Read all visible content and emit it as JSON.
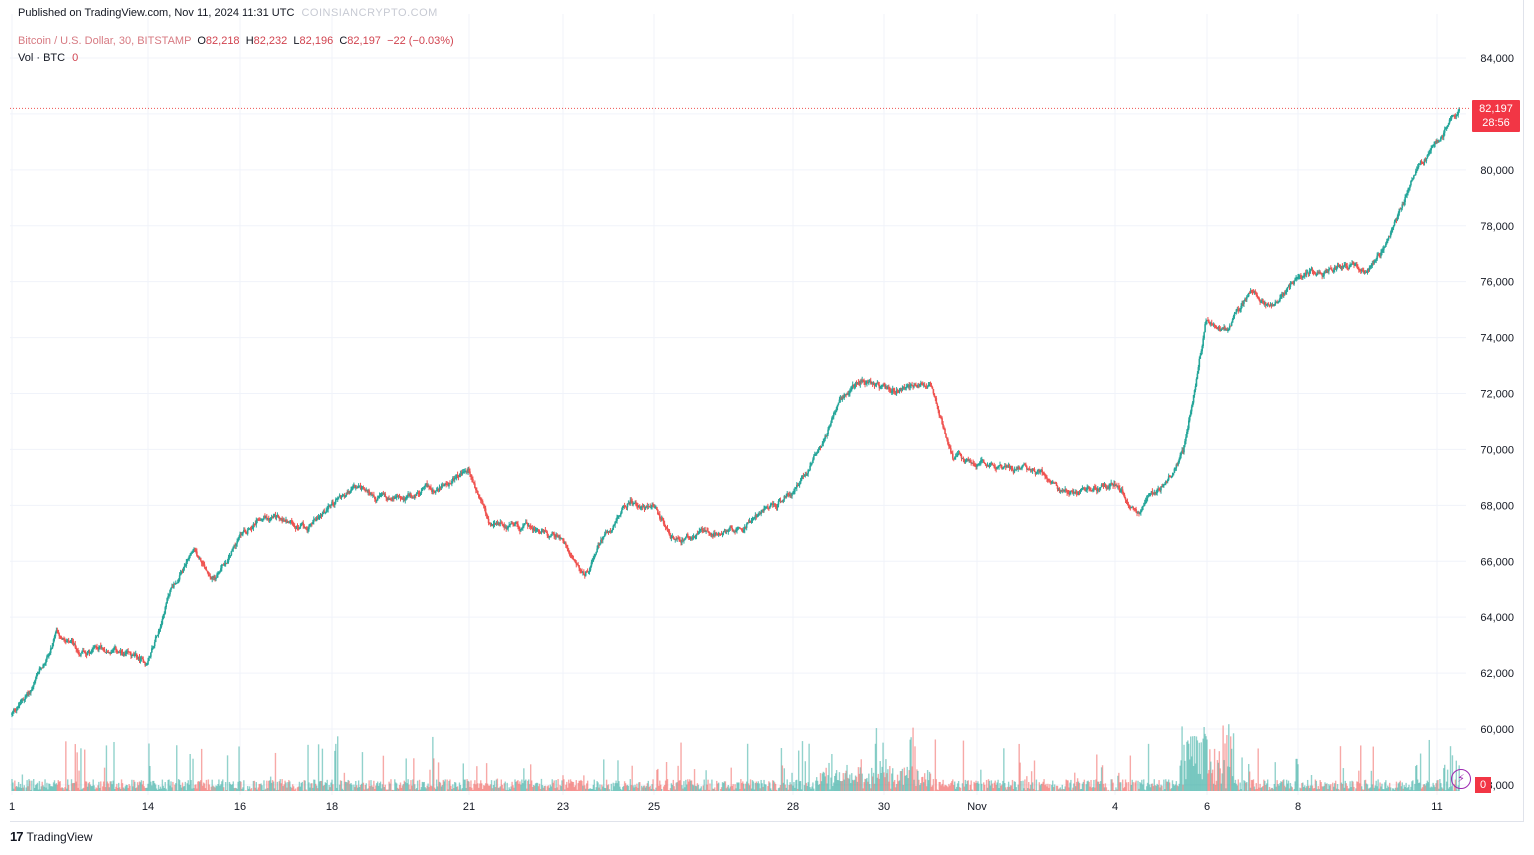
{
  "header": {
    "published_by": "Published on TradingView.com, Nov 11, 2024 11:31 UTC",
    "watermark": "COINSIANCRYPTO.COM",
    "symbol": "Bitcoin / U.S. Dollar, 30, BITSTAMP",
    "o_label": "O",
    "o_value": "82,218",
    "h_label": "H",
    "h_value": "82,232",
    "l_label": "L",
    "l_value": "82,196",
    "c_label": "C",
    "c_value": "82,197",
    "change": "−22 (−0.03%)",
    "vol_label": "Vol · BTC",
    "vol_value": "0"
  },
  "price_badge": {
    "price": "82,197",
    "countdown": "28:56"
  },
  "volume_badge": "0",
  "footer": {
    "brand": "TradingView"
  },
  "colors": {
    "up": "#26a69a",
    "down": "#ef5350",
    "badge": "#f23645",
    "grid": "#f0f3fa"
  },
  "chart_data": {
    "type": "candlestick",
    "title": "Bitcoin / U.S. Dollar, 30, BITSTAMP",
    "interval": "30",
    "ylim": [
      59000,
      85000
    ],
    "y_ticks": [
      "84,000",
      "82,000",
      "80,000",
      "78,000",
      "76,000",
      "74,000",
      "72,000",
      "70,000",
      "68,000",
      "66,000",
      "64,000",
      "62,000",
      "60,000",
      "58,000"
    ],
    "x_ticks": [
      "1",
      "14",
      "16",
      "18",
      "21",
      "23",
      "25",
      "28",
      "30",
      "Nov",
      "4",
      "6",
      "8",
      "11"
    ],
    "last_price": 82197,
    "price_path": [
      {
        "x": "Oct 11 00:00",
        "y": 60500
      },
      {
        "x": "Oct 11 12:00",
        "y": 61500
      },
      {
        "x": "Oct 12 00:00",
        "y": 63300
      },
      {
        "x": "Oct 12 12:00",
        "y": 62700
      },
      {
        "x": "Oct 13 00:00",
        "y": 63000
      },
      {
        "x": "Oct 13 12:00",
        "y": 62600
      },
      {
        "x": "Oct 14 00:00",
        "y": 62300
      },
      {
        "x": "Oct 14 12:00",
        "y": 65000
      },
      {
        "x": "Oct 15 00:00",
        "y": 66200
      },
      {
        "x": "Oct 15 12:00",
        "y": 65400
      },
      {
        "x": "Oct 16 00:00",
        "y": 66800
      },
      {
        "x": "Oct 16 12:00",
        "y": 67800
      },
      {
        "x": "Oct 17 00:00",
        "y": 67400
      },
      {
        "x": "Oct 17 12:00",
        "y": 67200
      },
      {
        "x": "Oct 18 00:00",
        "y": 68000
      },
      {
        "x": "Oct 18 12:00",
        "y": 68600
      },
      {
        "x": "Oct 19 00:00",
        "y": 68300
      },
      {
        "x": "Oct 19 12:00",
        "y": 68200
      },
      {
        "x": "Oct 20 00:00",
        "y": 68400
      },
      {
        "x": "Oct 20 12:00",
        "y": 68700
      },
      {
        "x": "Oct 21 00:00",
        "y": 69200
      },
      {
        "x": "Oct 21 12:00",
        "y": 67200
      },
      {
        "x": "Oct 22 00:00",
        "y": 67300
      },
      {
        "x": "Oct 22 12:00",
        "y": 67100
      },
      {
        "x": "Oct 23 00:00",
        "y": 66800
      },
      {
        "x": "Oct 23 12:00",
        "y": 65600
      },
      {
        "x": "Oct 24 00:00",
        "y": 67100
      },
      {
        "x": "Oct 24 12:00",
        "y": 68200
      },
      {
        "x": "Oct 25 00:00",
        "y": 67800
      },
      {
        "x": "Oct 25 12:00",
        "y": 66600
      },
      {
        "x": "Oct 26 00:00",
        "y": 67000
      },
      {
        "x": "Oct 26 12:00",
        "y": 67100
      },
      {
        "x": "Oct 27 00:00",
        "y": 67300
      },
      {
        "x": "Oct 27 12:00",
        "y": 67900
      },
      {
        "x": "Oct 28 00:00",
        "y": 68500
      },
      {
        "x": "Oct 28 12:00",
        "y": 69700
      },
      {
        "x": "Oct 29 00:00",
        "y": 71500
      },
      {
        "x": "Oct 29 12:00",
        "y": 72500
      },
      {
        "x": "Oct 30 00:00",
        "y": 72200
      },
      {
        "x": "Oct 30 12:00",
        "y": 72200
      },
      {
        "x": "Oct 31 00:00",
        "y": 72300
      },
      {
        "x": "Oct 31 12:00",
        "y": 69800
      },
      {
        "x": "Nov 1 00:00",
        "y": 69600
      },
      {
        "x": "Nov 1 12:00",
        "y": 69400
      },
      {
        "x": "Nov 2 00:00",
        "y": 69300
      },
      {
        "x": "Nov 2 12:00",
        "y": 69100
      },
      {
        "x": "Nov 3 00:00",
        "y": 68300
      },
      {
        "x": "Nov 3 12:00",
        "y": 68500
      },
      {
        "x": "Nov 4 00:00",
        "y": 68800
      },
      {
        "x": "Nov 4 12:00",
        "y": 67800
      },
      {
        "x": "Nov 5 00:00",
        "y": 68600
      },
      {
        "x": "Nov 5 12:00",
        "y": 69800
      },
      {
        "x": "Nov 6 00:00",
        "y": 74600
      },
      {
        "x": "Nov 6 12:00",
        "y": 74300
      },
      {
        "x": "Nov 7 00:00",
        "y": 75700
      },
      {
        "x": "Nov 7 12:00",
        "y": 75100
      },
      {
        "x": "Nov 8 00:00",
        "y": 76200
      },
      {
        "x": "Nov 8 12:00",
        "y": 76400
      },
      {
        "x": "Nov 9 00:00",
        "y": 76500
      },
      {
        "x": "Nov 9 12:00",
        "y": 76400
      },
      {
        "x": "Nov 10 00:00",
        "y": 77400
      },
      {
        "x": "Nov 10 12:00",
        "y": 79700
      },
      {
        "x": "Nov 11 00:00",
        "y": 80800
      },
      {
        "x": "Nov 11 11:30",
        "y": 82197
      }
    ],
    "volume_peak_label": "Nov 6"
  }
}
